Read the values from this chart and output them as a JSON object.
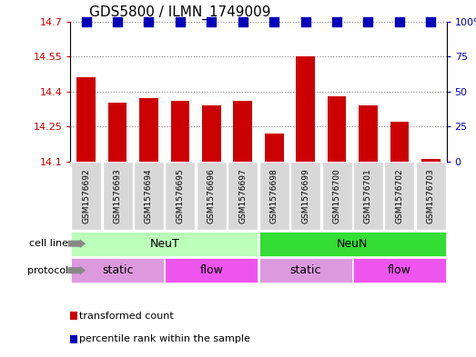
{
  "title": "GDS5800 / ILMN_1749009",
  "samples": [
    "GSM1576692",
    "GSM1576693",
    "GSM1576694",
    "GSM1576695",
    "GSM1576696",
    "GSM1576697",
    "GSM1576698",
    "GSM1576699",
    "GSM1576700",
    "GSM1576701",
    "GSM1576702",
    "GSM1576703"
  ],
  "bar_values": [
    14.46,
    14.35,
    14.37,
    14.36,
    14.34,
    14.36,
    14.22,
    14.55,
    14.38,
    14.34,
    14.27,
    14.11
  ],
  "ylim_left": [
    14.1,
    14.7
  ],
  "ylim_right": [
    0,
    100
  ],
  "yticks_left": [
    14.1,
    14.25,
    14.4,
    14.55,
    14.7
  ],
  "yticks_right": [
    0,
    25,
    50,
    75,
    100
  ],
  "ytick_labels_right": [
    "0",
    "25",
    "50",
    "75",
    "100%"
  ],
  "bar_color": "#cc0000",
  "dot_color": "#0000bb",
  "dot_size": 50,
  "bar_width": 0.6,
  "cell_line_groups": [
    {
      "label": "NeuT",
      "start": 0,
      "end": 6,
      "color": "#bbffbb"
    },
    {
      "label": "NeuN",
      "start": 6,
      "end": 12,
      "color": "#33dd33"
    }
  ],
  "protocol_groups": [
    {
      "label": "static",
      "start": 0,
      "end": 3,
      "color": "#dd99dd"
    },
    {
      "label": "flow",
      "start": 3,
      "end": 6,
      "color": "#ee55ee"
    },
    {
      "label": "static",
      "start": 6,
      "end": 9,
      "color": "#dd99dd"
    },
    {
      "label": "flow",
      "start": 9,
      "end": 12,
      "color": "#ee55ee"
    }
  ],
  "cell_line_label": "cell line",
  "protocol_label": "protocol",
  "sample_bg_color": "#d8d8d8",
  "legend_items": [
    {
      "color": "#cc0000",
      "label": "transformed count"
    },
    {
      "color": "#0000bb",
      "label": "percentile rank within the sample"
    }
  ],
  "grid_color": "#888888"
}
